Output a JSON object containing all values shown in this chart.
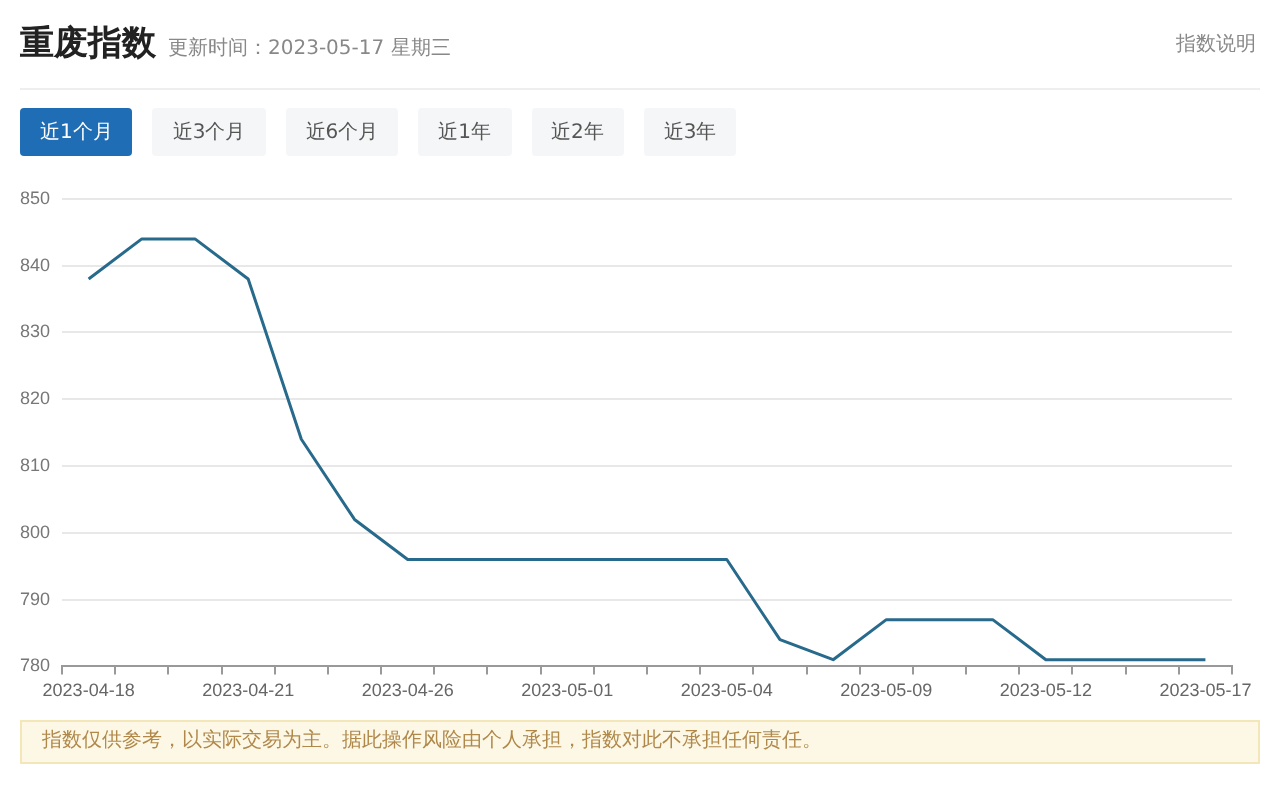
{
  "chart_data": {
    "type": "line",
    "title": "重废指数",
    "subtitle": "更新时间：2023-05-17 星期三",
    "annotations": [
      "指数说明",
      "近1个月",
      "近3个月",
      "近6个月",
      "近1年",
      "近2年",
      "近3年",
      "指数仅供参考，以实际交易为主。据此操作风险由个人承担，指数对此不承担任何责任。"
    ],
    "categories": [
      "2023-04-18",
      null,
      null,
      "2023-04-21",
      null,
      null,
      "2023-04-26",
      null,
      null,
      "2023-05-01",
      null,
      null,
      "2023-05-04",
      null,
      null,
      "2023-05-09",
      null,
      null,
      "2023-05-12",
      null,
      null,
      "2023-05-17"
    ],
    "series": [
      {
        "color": "#276a8c",
        "values": [
          838,
          844,
          844,
          838,
          814,
          802,
          796,
          796,
          796,
          796,
          796,
          796,
          796,
          784,
          781,
          787,
          787,
          787,
          781,
          781,
          781,
          781
        ]
      }
    ],
    "ylim": [
      780,
      850
    ],
    "yticks": [
      780,
      790,
      800,
      810,
      820,
      830,
      840,
      850
    ],
    "grid": "y",
    "legend": false,
    "marker": "none",
    "line_style": "solid"
  }
}
